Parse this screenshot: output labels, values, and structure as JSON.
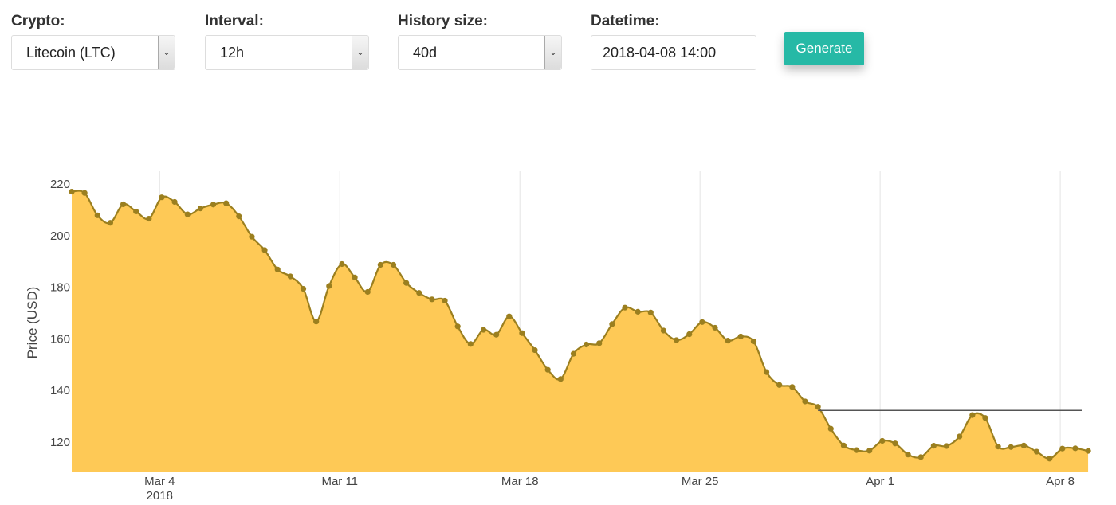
{
  "controls": {
    "crypto": {
      "label": "Crypto:",
      "value": "Litecoin (LTC)"
    },
    "interval": {
      "label": "Interval:",
      "value": "12h"
    },
    "history": {
      "label": "History size:",
      "value": "40d"
    },
    "datetime": {
      "label": "Datetime:",
      "value": "2018-04-08 14:00"
    },
    "generate_label": "Generate"
  },
  "icons": {
    "dropdown": "chevron-down-icon"
  },
  "chart_data": {
    "type": "area",
    "title": "",
    "xlabel": "",
    "ylabel": "Price (USD)",
    "fill_color": "#fec956",
    "line_color": "#9b7f1f",
    "marker_color": "#9b7f1f",
    "ref_line_color": "#555555",
    "grid_color": "#e4e4e4",
    "grid": true,
    "legend": false,
    "x_start": "2018-02-28 14:00",
    "x_step_hours": 12,
    "xlim": [
      "2018-02-28 14:00",
      "2018-04-08 20:00"
    ],
    "ylim": [
      108.5,
      225
    ],
    "yticks": [
      120,
      140,
      160,
      180,
      200,
      220
    ],
    "xticks": [
      {
        "date": "2018-03-04 00:00",
        "label": "Mar 4",
        "sublabel": "2018"
      },
      {
        "date": "2018-03-11 00:00",
        "label": "Mar 11",
        "sublabel": ""
      },
      {
        "date": "2018-03-18 00:00",
        "label": "Mar 18",
        "sublabel": ""
      },
      {
        "date": "2018-03-25 00:00",
        "label": "Mar 25",
        "sublabel": ""
      },
      {
        "date": "2018-04-01 00:00",
        "label": "Apr 1",
        "sublabel": ""
      },
      {
        "date": "2018-04-08 00:00",
        "label": "Apr 8",
        "sublabel": ""
      }
    ],
    "values": [
      217.1,
      216.6,
      207.9,
      205.0,
      212.2,
      209.4,
      206.6,
      214.9,
      213.1,
      208.3,
      210.6,
      212.1,
      212.6,
      207.5,
      199.6,
      194.4,
      186.9,
      184.2,
      179.4,
      166.7,
      180.5,
      189.0,
      183.8,
      178.2,
      188.7,
      188.7,
      181.7,
      177.8,
      175.3,
      174.8,
      164.8,
      158.0,
      163.5,
      161.6,
      168.7,
      162.2,
      155.6,
      148.0,
      144.4,
      154.2,
      157.8,
      158.3,
      165.7,
      172.1,
      170.5,
      170.2,
      163.2,
      159.5,
      161.8,
      166.5,
      164.3,
      159.3,
      160.9,
      159.0,
      147.1,
      142.1,
      141.3,
      135.7,
      133.6,
      125.1,
      118.6,
      116.8,
      116.6,
      120.4,
      119.4,
      115.1,
      114.1,
      118.5,
      118.4,
      122.1,
      130.4,
      129.3,
      118.2,
      118.0,
      118.6,
      116.2,
      113.5,
      117.4,
      117.5,
      116.5
    ],
    "ref_line": {
      "y": 132.2,
      "x_from": "2018-03-29 14:00",
      "x_to": "2018-04-08 20:00"
    }
  }
}
